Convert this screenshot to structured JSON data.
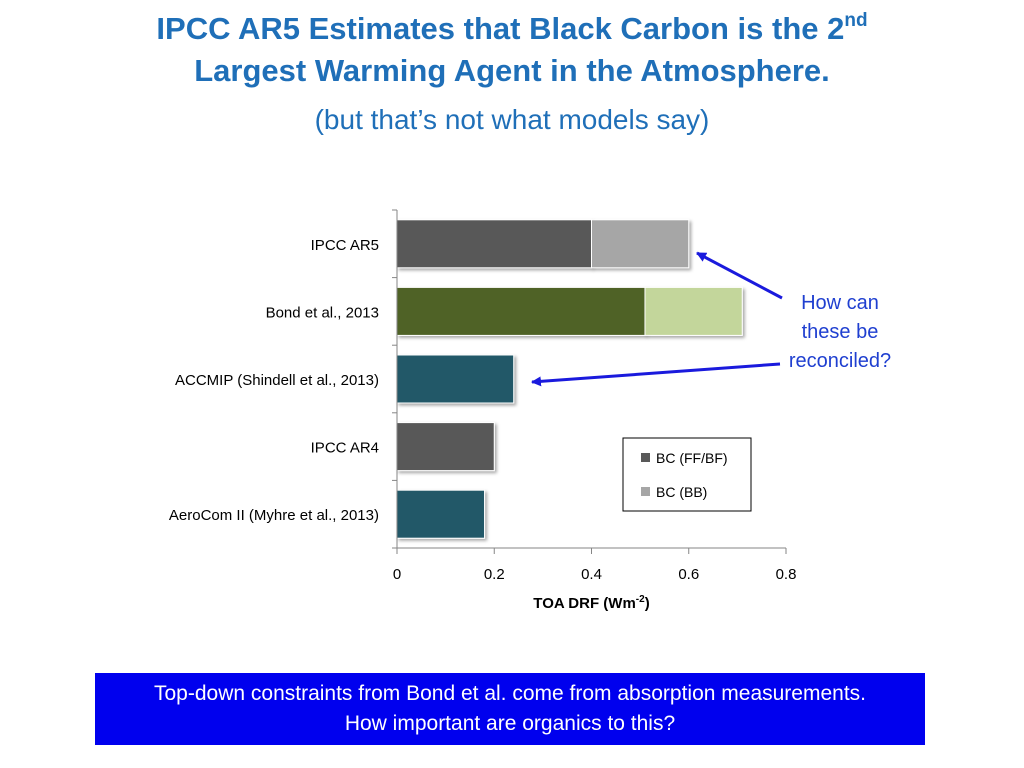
{
  "slide": {
    "title_line1_a": "IPCC AR5 Estimates that Black Carbon is the 2",
    "title_line1_sup": "nd",
    "title_line2": "Largest Warming Agent in the Atmosphere.",
    "subtitle": "(but that’s not what models say)",
    "annotation": [
      "How can",
      "these be",
      "reconciled?"
    ],
    "footer": [
      "Top-down constraints from Bond et al. come from absorption measurements.",
      "How important are organics to this?"
    ]
  },
  "colors": {
    "title": "#1F6FB8",
    "annotation": "#1F3FD0",
    "arrow": "#1A1ADD",
    "footer_bg": "#0000EE"
  },
  "chart_data": {
    "type": "bar",
    "orientation": "horizontal",
    "stacked": true,
    "categories": [
      "IPCC AR5",
      "Bond et al., 2013",
      "ACCMIP (Shindell et al., 2013)",
      "IPCC AR4",
      "AeroCom II (Myhre et al., 2013)"
    ],
    "series": [
      {
        "name": "BC (FF/BF)",
        "values": [
          0.4,
          0.51,
          0.24,
          0.2,
          0.18
        ]
      },
      {
        "name": "BC (BB)",
        "values": [
          0.2,
          0.2,
          0.0,
          0.0,
          0.0
        ]
      }
    ],
    "bar_colors": [
      [
        "#595959",
        "#A6A6A6"
      ],
      [
        "#4F6228",
        "#C3D69B"
      ],
      [
        "#215967",
        "#215967"
      ],
      [
        "#595959",
        "#A6A6A6"
      ],
      [
        "#215967",
        "#215967"
      ]
    ],
    "legend_colors": [
      "#595959",
      "#A6A6A6"
    ],
    "xlabel_main": "TOA DRF (Wm",
    "xlabel_sup": "-2",
    "xlabel_end": ")",
    "xlim": [
      0,
      0.8
    ],
    "xticks": [
      0,
      0.2,
      0.4,
      0.6,
      0.8
    ],
    "xtick_labels": [
      "0",
      "0.2",
      "0.4",
      "0.6",
      "0.8"
    ],
    "legend_position": "center-right",
    "grid": false
  }
}
